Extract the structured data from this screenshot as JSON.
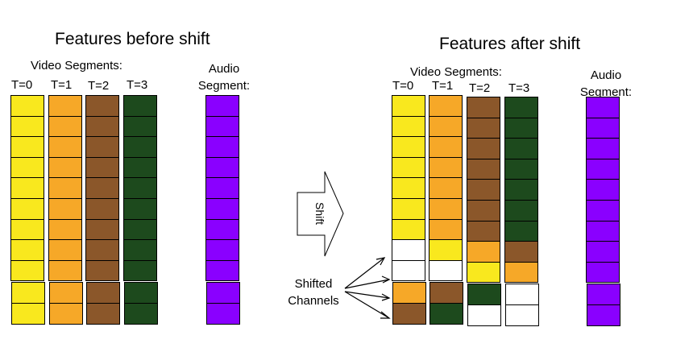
{
  "colors": {
    "yellow": "#f9e81e",
    "orange": "#f6a828",
    "brown": "#8b572a",
    "green": "#1d4a1d",
    "purple": "#8a00ff",
    "white": "#ffffff"
  },
  "left": {
    "title": "Features before shift",
    "video_label": "Video Segments:",
    "audio_label": "Audio Segment:",
    "time_labels": [
      "T=0",
      "T=1",
      "T=2",
      "T=3"
    ],
    "video_columns": [
      [
        "yellow",
        "yellow",
        "yellow",
        "yellow",
        "yellow",
        "yellow",
        "yellow",
        "yellow",
        "yellow",
        "yellow",
        "yellow"
      ],
      [
        "orange",
        "orange",
        "orange",
        "orange",
        "orange",
        "orange",
        "orange",
        "orange",
        "orange",
        "orange",
        "orange"
      ],
      [
        "brown",
        "brown",
        "brown",
        "brown",
        "brown",
        "brown",
        "brown",
        "brown",
        "brown",
        "brown",
        "brown"
      ],
      [
        "green",
        "green",
        "green",
        "green",
        "green",
        "green",
        "green",
        "green",
        "green",
        "green",
        "green"
      ]
    ],
    "audio_column": [
      "purple",
      "purple",
      "purple",
      "purple",
      "purple",
      "purple",
      "purple",
      "purple",
      "purple",
      "purple",
      "purple"
    ]
  },
  "right": {
    "title": "Features after shift",
    "video_label": "Video Segments:",
    "audio_label": "Audio Segment:",
    "time_labels": [
      "T=0",
      "T=1",
      "T=2",
      "T=3"
    ],
    "video_columns": [
      [
        "yellow",
        "yellow",
        "yellow",
        "yellow",
        "yellow",
        "yellow",
        "yellow",
        "white",
        "white",
        "orange",
        "brown"
      ],
      [
        "orange",
        "orange",
        "orange",
        "orange",
        "orange",
        "orange",
        "orange",
        "yellow",
        "white",
        "brown",
        "green"
      ],
      [
        "brown",
        "brown",
        "brown",
        "brown",
        "brown",
        "brown",
        "brown",
        "orange",
        "yellow",
        "green",
        "white"
      ],
      [
        "green",
        "green",
        "green",
        "green",
        "green",
        "green",
        "green",
        "brown",
        "orange",
        "white",
        "white"
      ]
    ],
    "audio_column": [
      "purple",
      "purple",
      "purple",
      "purple",
      "purple",
      "purple",
      "purple",
      "purple",
      "purple",
      "purple",
      "purple"
    ]
  },
  "shift_arrow_label": "Shift",
  "shifted_label": "Shifted Channels"
}
